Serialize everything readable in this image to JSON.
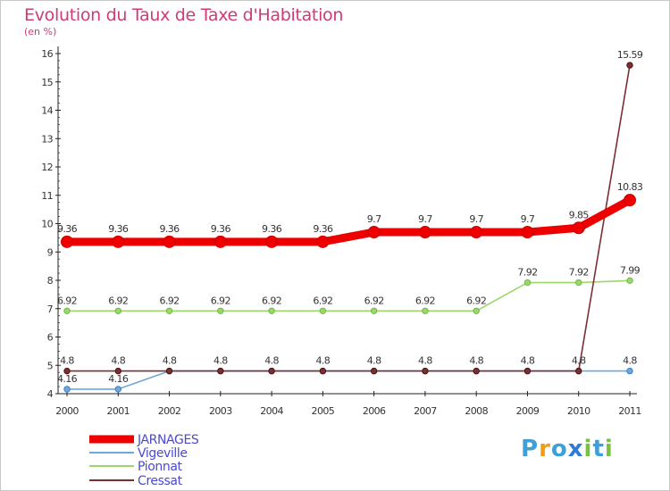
{
  "chart_data": {
    "type": "line",
    "title": "Evolution du Taux de Taxe d'Habitation",
    "subtitle": "(en %)",
    "xlabel": "",
    "ylabel": "(en %)",
    "ylim": [
      4,
      16
    ],
    "yticks": [
      "4",
      "5",
      "6",
      "7",
      "8",
      "9",
      "10",
      "11",
      "12",
      "13",
      "14",
      "15",
      "16"
    ],
    "categories": [
      "2000",
      "2001",
      "2002",
      "2003",
      "2004",
      "2005",
      "2006",
      "2007",
      "2008",
      "2009",
      "2010",
      "2011"
    ],
    "legend_position": "bottom-left",
    "series": [
      {
        "name": "JARNAGES",
        "color": "#ee0000",
        "values": [
          9.36,
          9.36,
          9.36,
          9.36,
          9.36,
          9.36,
          9.7,
          9.7,
          9.7,
          9.7,
          9.85,
          10.83
        ],
        "labels": [
          "9.36",
          "9.36",
          "9.36",
          "9.36",
          "9.36",
          "9.36",
          "9.7",
          "9.7",
          "9.7",
          "9.7",
          "9.85",
          "10.83"
        ]
      },
      {
        "name": "Vigeville",
        "color": "#6fa8dc",
        "values": [
          4.16,
          4.16,
          4.8,
          4.8,
          4.8,
          4.8,
          4.8,
          4.8,
          4.8,
          4.8,
          4.8,
          4.8
        ],
        "labels": [
          "4.16",
          "4.16",
          "",
          "",
          "",
          "",
          "",
          "",
          "",
          "",
          "",
          "4.8"
        ]
      },
      {
        "name": "Pionnat",
        "color": "#9ad86a",
        "values": [
          6.92,
          6.92,
          6.92,
          6.92,
          6.92,
          6.92,
          6.92,
          6.92,
          6.92,
          7.92,
          7.92,
          7.99
        ],
        "labels": [
          "6.92",
          "6.92",
          "6.92",
          "6.92",
          "6.92",
          "6.92",
          "6.92",
          "6.92",
          "6.92",
          "7.92",
          "7.92",
          "7.99"
        ]
      },
      {
        "name": "Cressat",
        "color": "#7a3030",
        "values": [
          4.8,
          4.8,
          4.8,
          4.8,
          4.8,
          4.8,
          4.8,
          4.8,
          4.8,
          4.8,
          4.8,
          15.59
        ],
        "labels": [
          "4.8",
          "4.8",
          "4.8",
          "4.8",
          "4.8",
          "4.8",
          "4.8",
          "4.8",
          "4.8",
          "4.8",
          "4.8",
          "15.59"
        ]
      }
    ]
  },
  "branding": {
    "logo_letters": [
      "P",
      "r",
      "o",
      "x",
      "i",
      "t",
      "i"
    ],
    "logo_colors": [
      "#3fa0d8",
      "#f39c12",
      "#3fa0d8",
      "#2e7bd6",
      "#79c143",
      "#3fa0d8",
      "#79c143"
    ]
  }
}
